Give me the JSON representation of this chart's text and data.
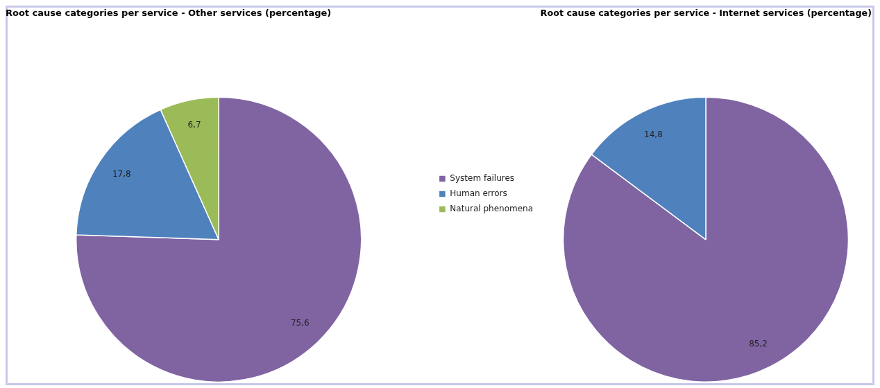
{
  "chart_data": [
    {
      "type": "pie",
      "title": "Root cause categories per service - Other services (percentage)",
      "categories": [
        "System failures",
        "Human errors",
        "Natural phenomena"
      ],
      "values": [
        75.6,
        17.8,
        6.7
      ],
      "colors": [
        "#8064a2",
        "#4f81bd",
        "#9bbb59"
      ],
      "value_labels": [
        "75,6",
        "17,8",
        "6,7"
      ],
      "legend": "right"
    },
    {
      "type": "pie",
      "title": "Root cause categories per service - Internet services (percentage)",
      "values": [
        85.2,
        14.8
      ],
      "colors": [
        "#8064a2",
        "#4f81bd"
      ],
      "value_labels": [
        "85,2",
        "14,8"
      ]
    }
  ]
}
